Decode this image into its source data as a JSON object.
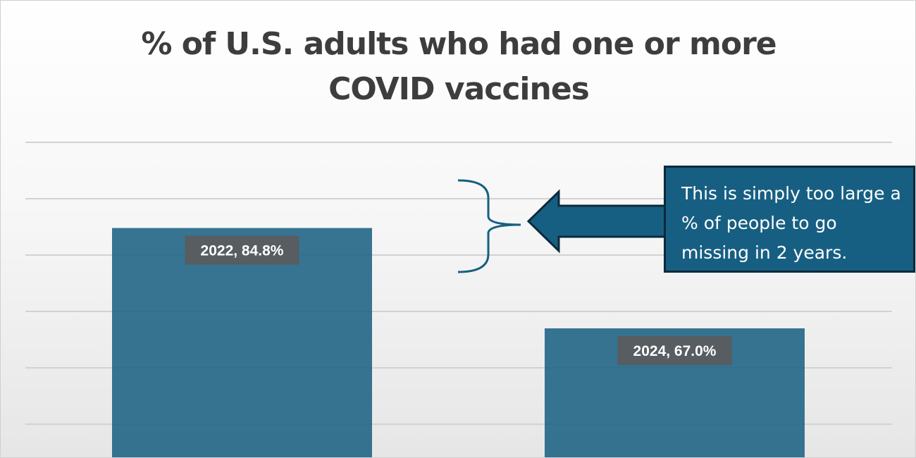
{
  "chart_data": {
    "type": "bar",
    "title": "% of U.S. adults who had one or more COVID vaccines",
    "title_lines": [
      "% of U.S. adults who had one or more",
      "COVID vaccines"
    ],
    "categories": [
      "2022",
      "2024"
    ],
    "values": [
      84.8,
      67.0
    ],
    "data_labels": [
      "2022, 84.8%",
      "2024, 67.0%"
    ],
    "unit": "%",
    "ylim": [
      0,
      100
    ],
    "ytick_step": 10,
    "grid": true,
    "legend": "none",
    "xlabel": "",
    "ylabel": "",
    "annotations": [
      {
        "type": "callout",
        "text": "This is simply too large a % of people to go missing in 2 years."
      }
    ]
  },
  "colors": {
    "bar": "#1b6284",
    "callout_fill": "#175f82",
    "callout_border": "#0c2a3c",
    "label_background": "#5b5b5b",
    "title": "#3d3d3d",
    "gridline": "#d2d2d2"
  }
}
